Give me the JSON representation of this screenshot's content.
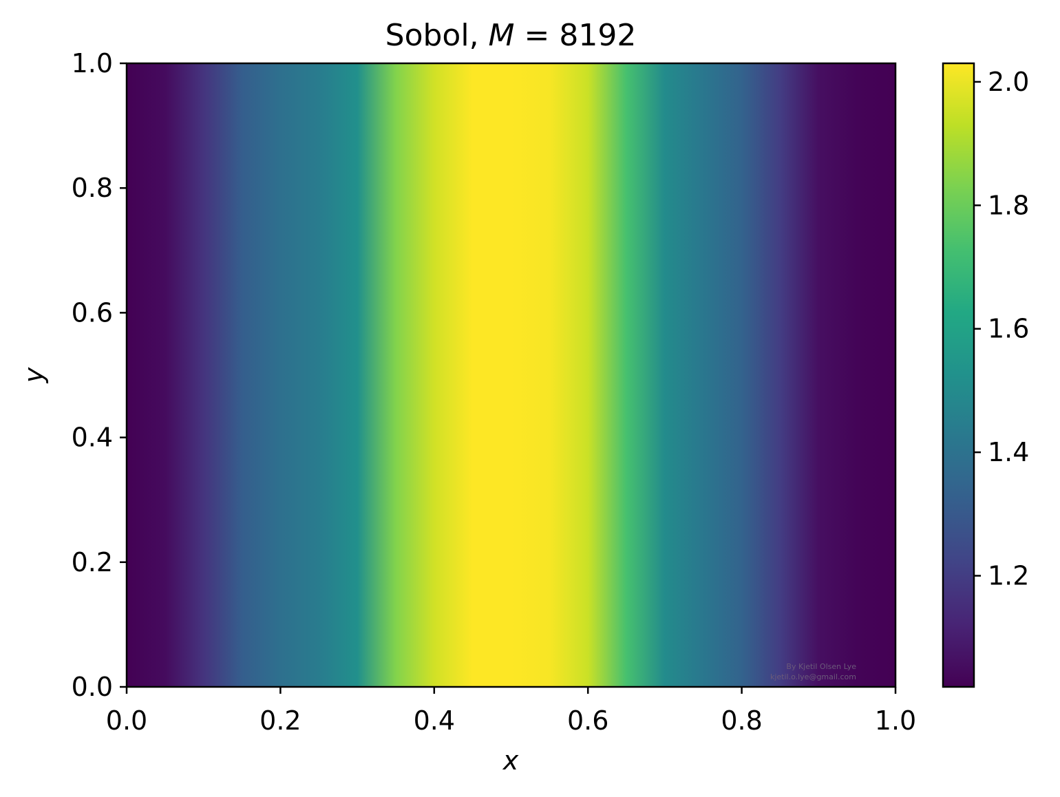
{
  "chart_data": {
    "type": "heatmap",
    "title": "Sobol, M = 8192",
    "title_parts": {
      "prefix": "Sobol, ",
      "var": "M",
      "eq": " = ",
      "value": "8192"
    },
    "xlabel": "x",
    "ylabel": "y",
    "xlim": [
      0.0,
      1.0
    ],
    "ylim": [
      0.0,
      1.0
    ],
    "x_ticks": [
      "0.0",
      "0.2",
      "0.4",
      "0.6",
      "0.8",
      "1.0"
    ],
    "y_ticks": [
      "0.0",
      "0.2",
      "0.4",
      "0.6",
      "0.8",
      "1.0"
    ],
    "colorbar": {
      "colormap": "viridis",
      "range": [
        1.02,
        2.03
      ],
      "ticks": [
        "1.2",
        "1.4",
        "1.6",
        "1.8",
        "2.0"
      ],
      "tick_values": [
        1.2,
        1.4,
        1.6,
        1.8,
        2.0
      ]
    },
    "profile_note": "value varies only along x; constant along y",
    "x_profile": {
      "x": [
        0.0,
        0.05,
        0.1,
        0.15,
        0.2,
        0.25,
        0.3,
        0.35,
        0.4,
        0.45,
        0.5,
        0.55,
        0.6,
        0.65,
        0.7,
        0.75,
        0.8,
        0.85,
        0.9,
        0.95,
        1.0
      ],
      "value": [
        1.02,
        1.05,
        1.17,
        1.32,
        1.39,
        1.44,
        1.52,
        1.84,
        1.96,
        2.03,
        2.03,
        2.02,
        1.95,
        1.73,
        1.5,
        1.42,
        1.34,
        1.2,
        1.06,
        1.03,
        1.02
      ]
    },
    "grid": false,
    "watermark": [
      "By Kjetil Olsen Lye",
      "kjetil.o.lye@gmail.com"
    ]
  }
}
